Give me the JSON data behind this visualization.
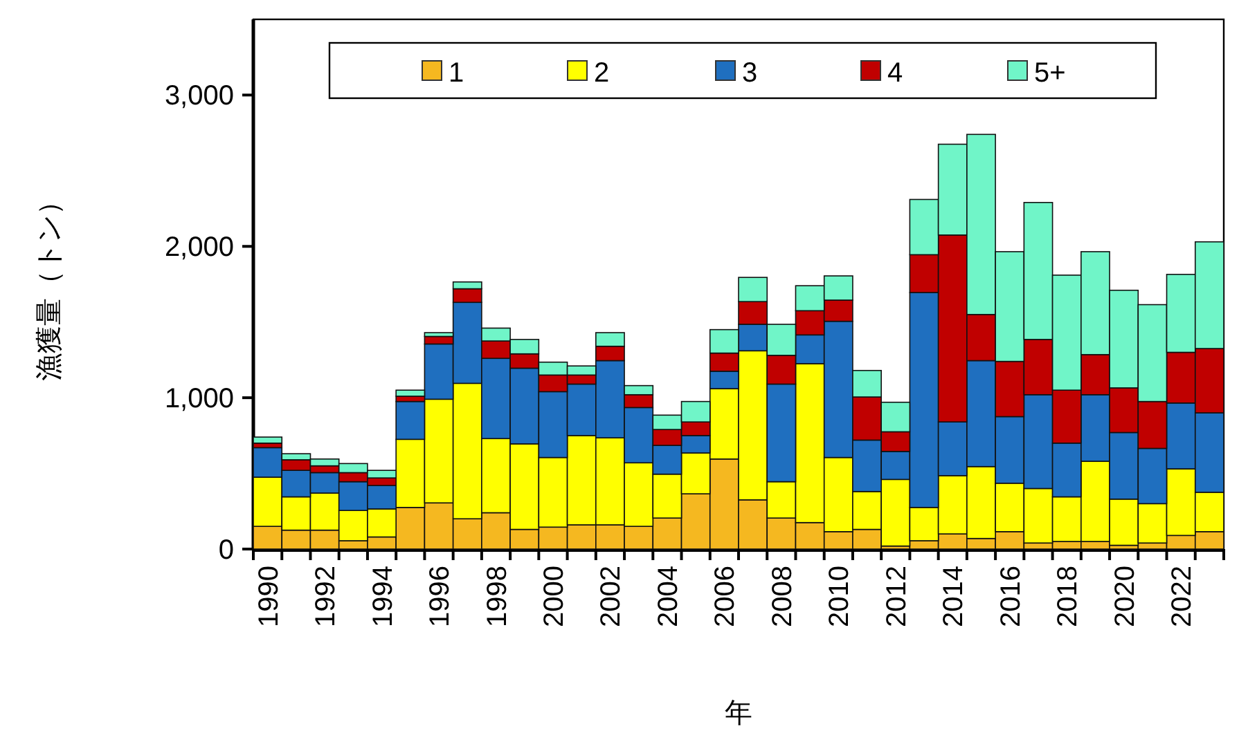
{
  "chart_data": {
    "type": "bar",
    "stacked": true,
    "xlabel": "年",
    "ylabel": "漁獲量（トン）",
    "categories": [
      "1990",
      null,
      "1992",
      null,
      "1994",
      null,
      "1996",
      null,
      "1998",
      null,
      "2000",
      null,
      "2002",
      null,
      "2004",
      null,
      "2006",
      null,
      "2008",
      null,
      "2010",
      null,
      "2012",
      null,
      "2014",
      null,
      "2016",
      null,
      "2018",
      null,
      "2020",
      null,
      "2022",
      null
    ],
    "series": [
      {
        "name": "1",
        "color": "#f5b820",
        "values": [
          150,
          125,
          125,
          55,
          80,
          275,
          305,
          200,
          240,
          130,
          145,
          160,
          160,
          150,
          205,
          365,
          595,
          325,
          205,
          175,
          115,
          130,
          20,
          55,
          100,
          70,
          115,
          40,
          50,
          50,
          25,
          40,
          90,
          115
        ]
      },
      {
        "name": "2",
        "color": "#ffff00",
        "values": [
          325,
          220,
          245,
          200,
          185,
          450,
          685,
          895,
          490,
          565,
          460,
          590,
          575,
          420,
          290,
          270,
          465,
          985,
          240,
          1050,
          490,
          250,
          440,
          220,
          385,
          475,
          320,
          360,
          295,
          530,
          305,
          260,
          440,
          260
        ]
      },
      {
        "name": "3",
        "color": "#1f6fbf",
        "values": [
          195,
          175,
          135,
          190,
          155,
          250,
          365,
          535,
          530,
          500,
          435,
          340,
          510,
          365,
          190,
          115,
          115,
          175,
          645,
          190,
          900,
          340,
          185,
          1420,
          355,
          700,
          440,
          620,
          355,
          440,
          440,
          365,
          435,
          525
        ]
      },
      {
        "name": "4",
        "color": "#c00000",
        "values": [
          30,
          70,
          45,
          60,
          50,
          35,
          50,
          90,
          115,
          95,
          110,
          60,
          95,
          85,
          105,
          90,
          120,
          150,
          190,
          160,
          140,
          285,
          130,
          250,
          1235,
          305,
          365,
          365,
          350,
          265,
          295,
          310,
          335,
          425
        ]
      },
      {
        "name": "5+",
        "color": "#70f5c8",
        "values": [
          40,
          40,
          45,
          60,
          50,
          40,
          25,
          45,
          85,
          95,
          85,
          60,
          90,
          60,
          95,
          135,
          155,
          160,
          205,
          165,
          160,
          175,
          195,
          365,
          600,
          1190,
          725,
          905,
          760,
          680,
          645,
          640,
          515,
          705
        ]
      }
    ],
    "ylim": [
      0,
      3500
    ],
    "yticks": [
      {
        "value": 0,
        "label": "0"
      },
      {
        "value": 1000,
        "label": "1,000"
      },
      {
        "value": 2000,
        "label": "2,000"
      },
      {
        "value": 3000,
        "label": "3,000"
      }
    ],
    "legend": "top",
    "grid": false
  }
}
